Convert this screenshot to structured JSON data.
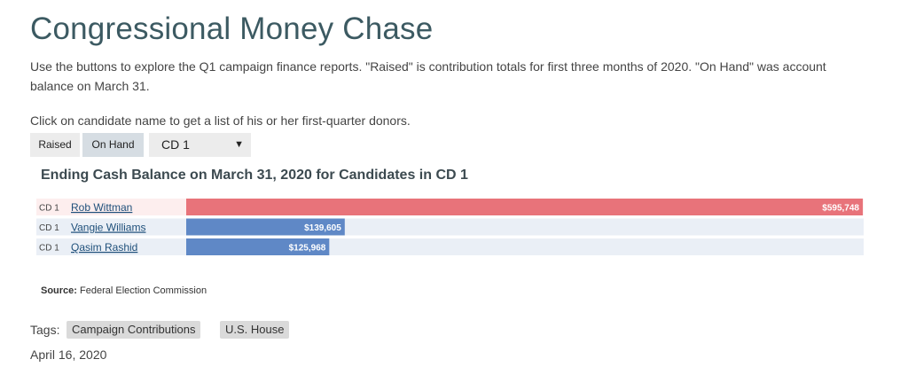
{
  "page": {
    "title": "Congressional Money Chase",
    "intro": "Use the buttons to explore the Q1 campaign finance reports. \"Raised\" is contribution totals for first three months of 2020. \"On Hand\" was account balance on March 31.",
    "click_note": "Click on candidate name to get a list of his or her first-quarter donors."
  },
  "controls": {
    "raised_label": "Raised",
    "onhand_label": "On Hand",
    "district_value": "CD 1",
    "caret": "▼"
  },
  "chart_data": {
    "type": "bar",
    "orientation": "horizontal",
    "title": "Ending Cash Balance on March 31, 2020 for Candidates in CD 1",
    "categories": [
      "Rob Wittman",
      "Vangie Williams",
      "Qasim Rashid"
    ],
    "districts": [
      "CD 1",
      "CD 1",
      "CD 1"
    ],
    "values": [
      595748,
      139605,
      125968
    ],
    "value_labels": [
      "$595,748",
      "$139,605",
      "$125,968"
    ],
    "colors": [
      "#e8737a",
      "#5f88c6",
      "#5f88c6"
    ],
    "row_backgrounds": [
      "#fdeeee",
      "#eaeff6",
      "#eaeff6"
    ],
    "xlim": [
      0,
      595748
    ],
    "grid": false
  },
  "source": {
    "label": "Source:",
    "text": "Federal Election Commission"
  },
  "tags": {
    "label": "Tags:",
    "items": [
      "Campaign Contributions",
      "U.S. House"
    ]
  },
  "date": "April 16, 2020"
}
